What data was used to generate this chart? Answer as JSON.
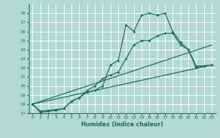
{
  "background_color": "#b2d8d8",
  "grid_color": "#c8e8e8",
  "line_color": "#1a6b5a",
  "xlabel": "Humidex (Indice chaleur)",
  "xlim": [
    -0.5,
    23.5
  ],
  "ylim": [
    17,
    29
  ],
  "yticks": [
    17,
    18,
    19,
    20,
    21,
    22,
    23,
    24,
    25,
    26,
    27,
    28
  ],
  "xticks": [
    0,
    1,
    2,
    3,
    4,
    5,
    6,
    7,
    8,
    9,
    10,
    11,
    12,
    13,
    14,
    15,
    16,
    17,
    18,
    19,
    20,
    21,
    22,
    23
  ],
  "line1_x": [
    0,
    1,
    2,
    3,
    4,
    5,
    6,
    7,
    8,
    9,
    10,
    11,
    12,
    13,
    14,
    15,
    16,
    17,
    18,
    19,
    20,
    21,
    22,
    23
  ],
  "line1_y": [
    18.0,
    17.1,
    17.2,
    17.3,
    17.5,
    18.3,
    18.7,
    19.3,
    19.5,
    20.0,
    22.3,
    22.8,
    26.7,
    26.0,
    27.8,
    28.0,
    27.8,
    28.0,
    26.0,
    24.8,
    24.0,
    22.2,
    22.2,
    22.3
  ],
  "line2_x": [
    0,
    1,
    2,
    3,
    4,
    5,
    6,
    7,
    8,
    9,
    10,
    11,
    12,
    13,
    14,
    15,
    16,
    17,
    18,
    19,
    20,
    21,
    22,
    23
  ],
  "line2_y": [
    18.0,
    17.2,
    17.3,
    17.4,
    17.5,
    18.3,
    18.7,
    19.5,
    20.0,
    20.8,
    21.2,
    21.5,
    23.0,
    24.5,
    25.0,
    25.0,
    25.5,
    25.8,
    25.8,
    24.5,
    24.0,
    22.0,
    22.2,
    22.3
  ],
  "line3_x": [
    0,
    23
  ],
  "line3_y": [
    18.0,
    22.3
  ],
  "line4_x": [
    0,
    23
  ],
  "line4_y": [
    18.0,
    24.5
  ]
}
